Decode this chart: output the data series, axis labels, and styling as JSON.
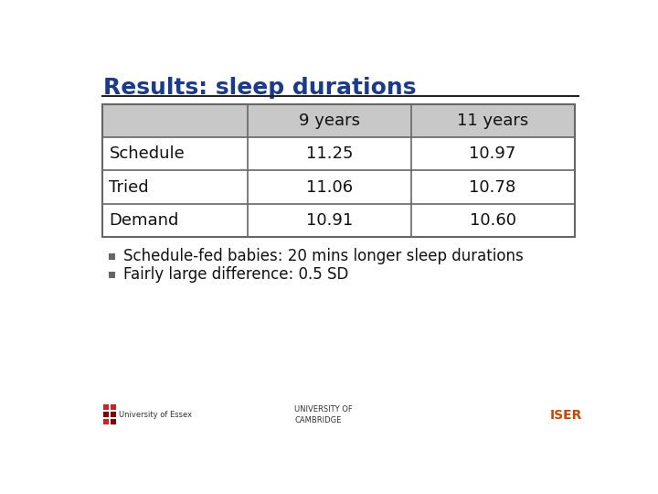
{
  "title": "Results: sleep durations",
  "title_color": "#1a3a8c",
  "title_fontsize": 18,
  "table_headers": [
    "",
    "9 years",
    "11 years"
  ],
  "table_rows": [
    [
      "Schedule",
      "11.25",
      "10.97"
    ],
    [
      "Tried",
      "11.06",
      "10.78"
    ],
    [
      "Demand",
      "10.91",
      "10.60"
    ]
  ],
  "bullet_points": [
    "Schedule-fed babies: 20 mins longer sleep durations",
    "Fairly large difference: 0.5 SD"
  ],
  "bg_color": "#ffffff",
  "table_header_bg": "#c8c8c8",
  "table_border_color": "#666666",
  "bullet_marker_color": "#666666",
  "text_color": "#111111",
  "header_line_color": "#222222",
  "bullet_fontsize": 12,
  "table_fontsize": 13
}
